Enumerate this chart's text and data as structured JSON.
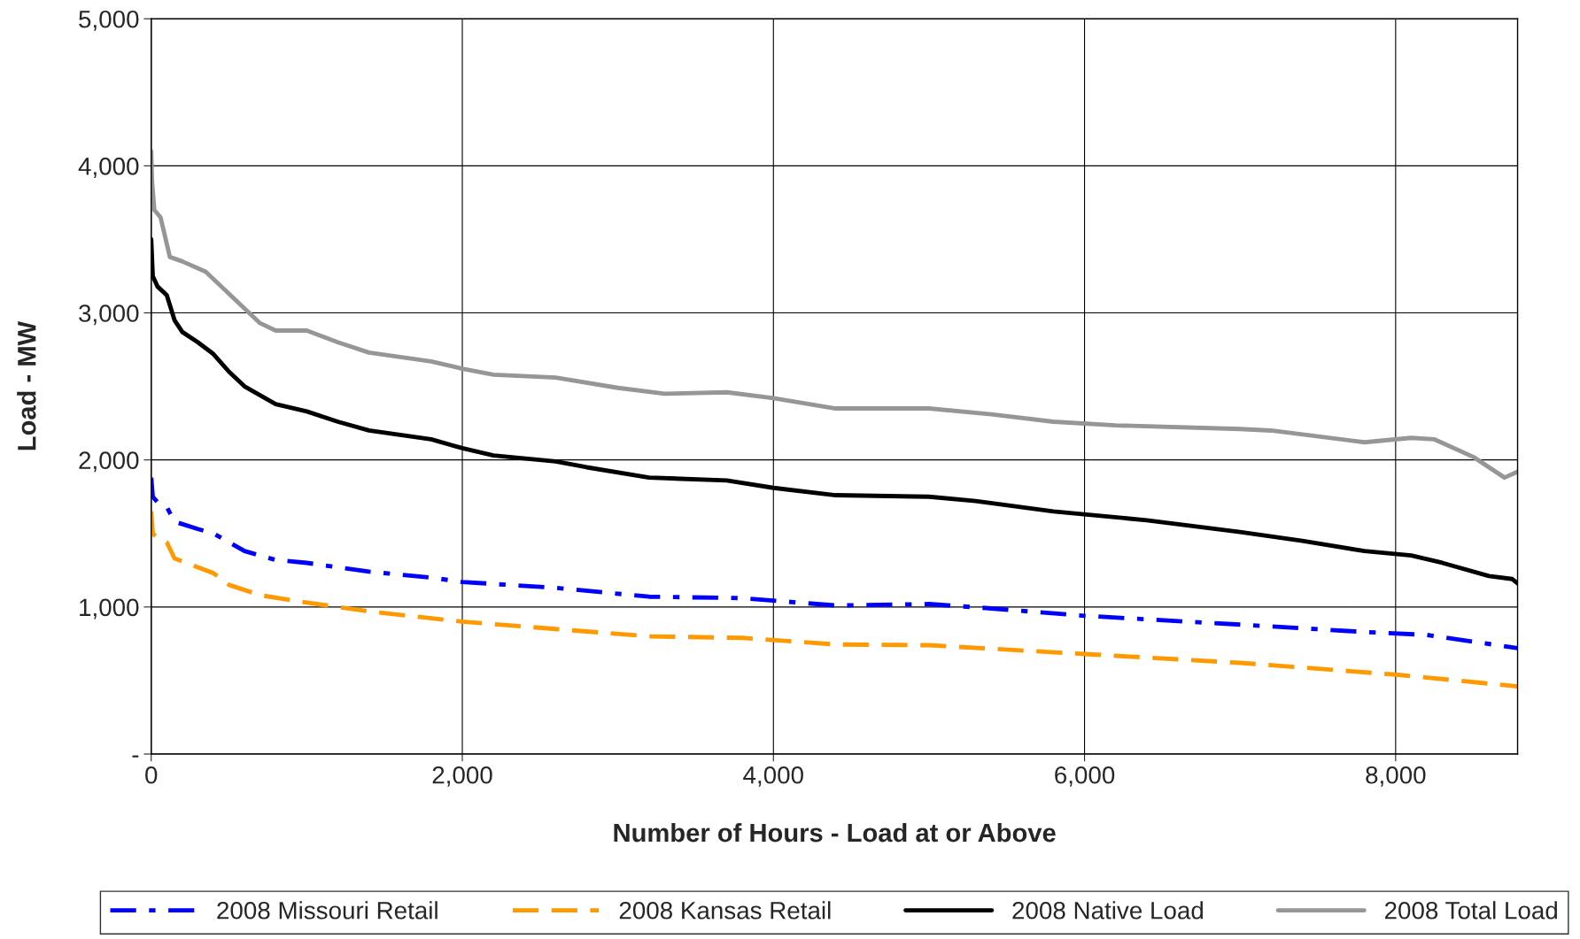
{
  "chart_data": {
    "type": "line",
    "xlabel": "Number of Hours - Load at or Above",
    "ylabel": "Load - MW",
    "xlim": [
      0,
      8784
    ],
    "xticks": [
      0,
      {
        "value": 2000,
        "label": "2,000"
      },
      {
        "value": 4000,
        "label": "4,000"
      },
      {
        "value": 6000,
        "label": "6,000"
      },
      {
        "value": 8000,
        "label": "8,000"
      }
    ],
    "ylim": [
      0,
      5000
    ],
    "yticks": [
      {
        "value": 0,
        "label": "-"
      },
      {
        "value": 1000,
        "label": "1,000"
      },
      {
        "value": 2000,
        "label": "2,000"
      },
      {
        "value": 3000,
        "label": "3,000"
      },
      {
        "value": 4000,
        "label": "4,000"
      },
      {
        "value": 5000,
        "label": "5,000"
      }
    ],
    "grid": true,
    "legend": "bottom",
    "marker": "none",
    "series": [
      {
        "name": "2008 Missouri Retail",
        "color": "#0000ff",
        "line_style": "dashdot",
        "x": [
          0,
          10,
          50,
          100,
          150,
          300,
          400,
          600,
          800,
          1000,
          1400,
          1800,
          2000,
          2600,
          3200,
          3800,
          4400,
          5000,
          5400,
          6000,
          7000,
          7800,
          8200,
          8784
        ],
        "values": [
          1880,
          1750,
          1700,
          1680,
          1580,
          1530,
          1500,
          1380,
          1320,
          1300,
          1240,
          1200,
          1170,
          1130,
          1070,
          1060,
          1010,
          1020,
          990,
          940,
          880,
          830,
          810,
          720
        ]
      },
      {
        "name": "2008 Kansas Retail",
        "color": "#ff9900",
        "line_style": "dashed",
        "x": [
          0,
          10,
          50,
          100,
          150,
          400,
          500,
          700,
          1000,
          1400,
          2000,
          2600,
          3200,
          3800,
          4400,
          5000,
          6000,
          7000,
          8000,
          8200,
          8784
        ],
        "values": [
          1650,
          1500,
          1460,
          1440,
          1330,
          1230,
          1150,
          1080,
          1030,
          970,
          900,
          850,
          800,
          790,
          745,
          740,
          680,
          620,
          540,
          520,
          460
        ]
      },
      {
        "name": "2008 Native Load",
        "color": "#000000",
        "line_style": "solid",
        "x": [
          0,
          10,
          40,
          100,
          150,
          200,
          300,
          400,
          500,
          600,
          800,
          1000,
          1200,
          1400,
          1800,
          2000,
          2200,
          2600,
          2800,
          3200,
          3700,
          4000,
          4400,
          5000,
          5300,
          5800,
          6400,
          7000,
          7400,
          7800,
          8100,
          8300,
          8600,
          8750,
          8784
        ],
        "values": [
          3500,
          3250,
          3180,
          3120,
          2950,
          2870,
          2800,
          2720,
          2600,
          2500,
          2380,
          2330,
          2260,
          2200,
          2140,
          2080,
          2030,
          1990,
          1950,
          1880,
          1860,
          1810,
          1760,
          1750,
          1720,
          1650,
          1590,
          1510,
          1450,
          1380,
          1350,
          1300,
          1210,
          1190,
          1160
        ]
      },
      {
        "name": "2008 Total Load",
        "color": "#969696",
        "line_style": "solid",
        "x": [
          0,
          5,
          20,
          60,
          120,
          200,
          350,
          500,
          700,
          800,
          1000,
          1200,
          1400,
          1800,
          2000,
          2200,
          2600,
          3000,
          3300,
          3700,
          4000,
          4400,
          5000,
          5400,
          5800,
          6200,
          7000,
          7200,
          7800,
          8100,
          8250,
          8500,
          8700,
          8784
        ],
        "values": [
          4100,
          3900,
          3700,
          3650,
          3380,
          3350,
          3280,
          3130,
          2930,
          2880,
          2880,
          2800,
          2730,
          2670,
          2620,
          2580,
          2560,
          2490,
          2450,
          2460,
          2420,
          2350,
          2350,
          2310,
          2260,
          2235,
          2210,
          2200,
          2120,
          2150,
          2140,
          2020,
          1880,
          1920
        ]
      }
    ]
  }
}
